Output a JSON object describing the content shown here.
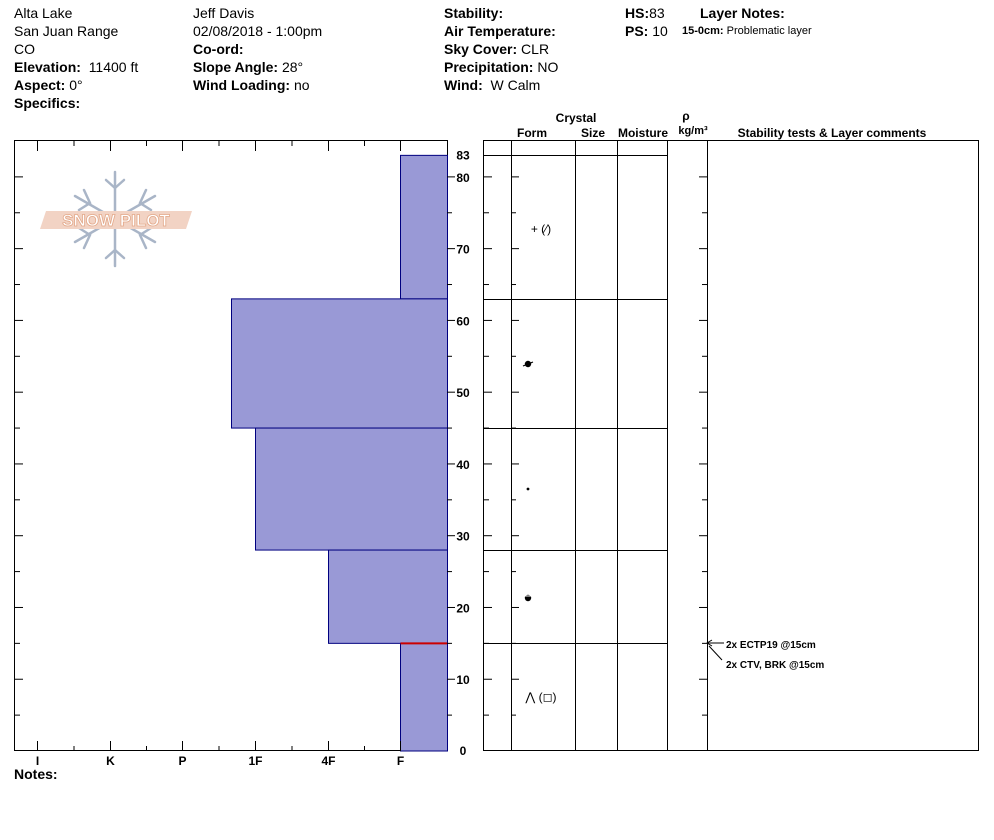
{
  "header": {
    "col1": {
      "location": "Alta Lake",
      "range": "San Juan Range",
      "state": "CO",
      "elevation_label": "Elevation:",
      "elevation_value": "11400 ft",
      "aspect_label": "Aspect:",
      "aspect_value": "0°",
      "specifics_label": "Specifics:"
    },
    "col2": {
      "observer": "Jeff Davis",
      "datetime": "02/08/2018 - 1:00pm",
      "coord_label": "Co-ord:",
      "slope_label": "Slope Angle:",
      "slope_value": "28°",
      "wind_loading_label": "Wind Loading:",
      "wind_loading_value": "no"
    },
    "col3": {
      "stability_label": "Stability:",
      "air_temp_label": "Air Temperature:",
      "sky_label": "Sky Cover:",
      "sky_value": "CLR",
      "precip_label": "Precipitation:",
      "precip_value": "NO",
      "wind_label": "Wind:",
      "wind_value": "W Calm"
    },
    "col4": {
      "hs_label": "HS:",
      "hs_value": "83",
      "ps_label": "PS:",
      "ps_value": "10",
      "layer_notes_label": "Layer Notes:",
      "layer_note_depth": "15-0cm:",
      "layer_note_text": "Problematic layer"
    }
  },
  "logo": {
    "text": "SNOW PILOT"
  },
  "table_headers": {
    "crystal": "Crystal",
    "form": "Form",
    "size": "Size",
    "moisture": "Moisture",
    "rho": "ρ",
    "density_unit": "kg/m³",
    "stability_comments": "Stability tests & Layer comments"
  },
  "notes_label": "Notes:",
  "layer_symbols": [
    "+ (⁄)",
    "",
    "",
    "",
    "⋀ (◻)"
  ],
  "stability_tests": [
    "2x ECTP19 @15cm",
    "2x CTV, BRK @15cm"
  ],
  "colors": {
    "layer_fill": "#9999d6",
    "layer_stroke": "#00007f",
    "weak_layer": "#cc0000"
  },
  "chart_data": {
    "type": "bar",
    "title": "",
    "xlabel": "",
    "ylabel": "",
    "x_ticks": [
      "I",
      "K",
      "P",
      "1F",
      "4F",
      "F"
    ],
    "ylim": [
      0,
      83
    ],
    "y_ticks": [
      0,
      10,
      20,
      30,
      40,
      50,
      60,
      70,
      80,
      83
    ],
    "layers": [
      {
        "top": 83,
        "bottom": 63,
        "hardness": "F"
      },
      {
        "top": 63,
        "bottom": 45,
        "hardness": "1F+"
      },
      {
        "top": 45,
        "bottom": 28,
        "hardness": "1F"
      },
      {
        "top": 28,
        "bottom": 15,
        "hardness": "4F"
      },
      {
        "top": 15,
        "bottom": 0,
        "hardness": "F"
      }
    ],
    "weak_layer_depth": 15
  }
}
